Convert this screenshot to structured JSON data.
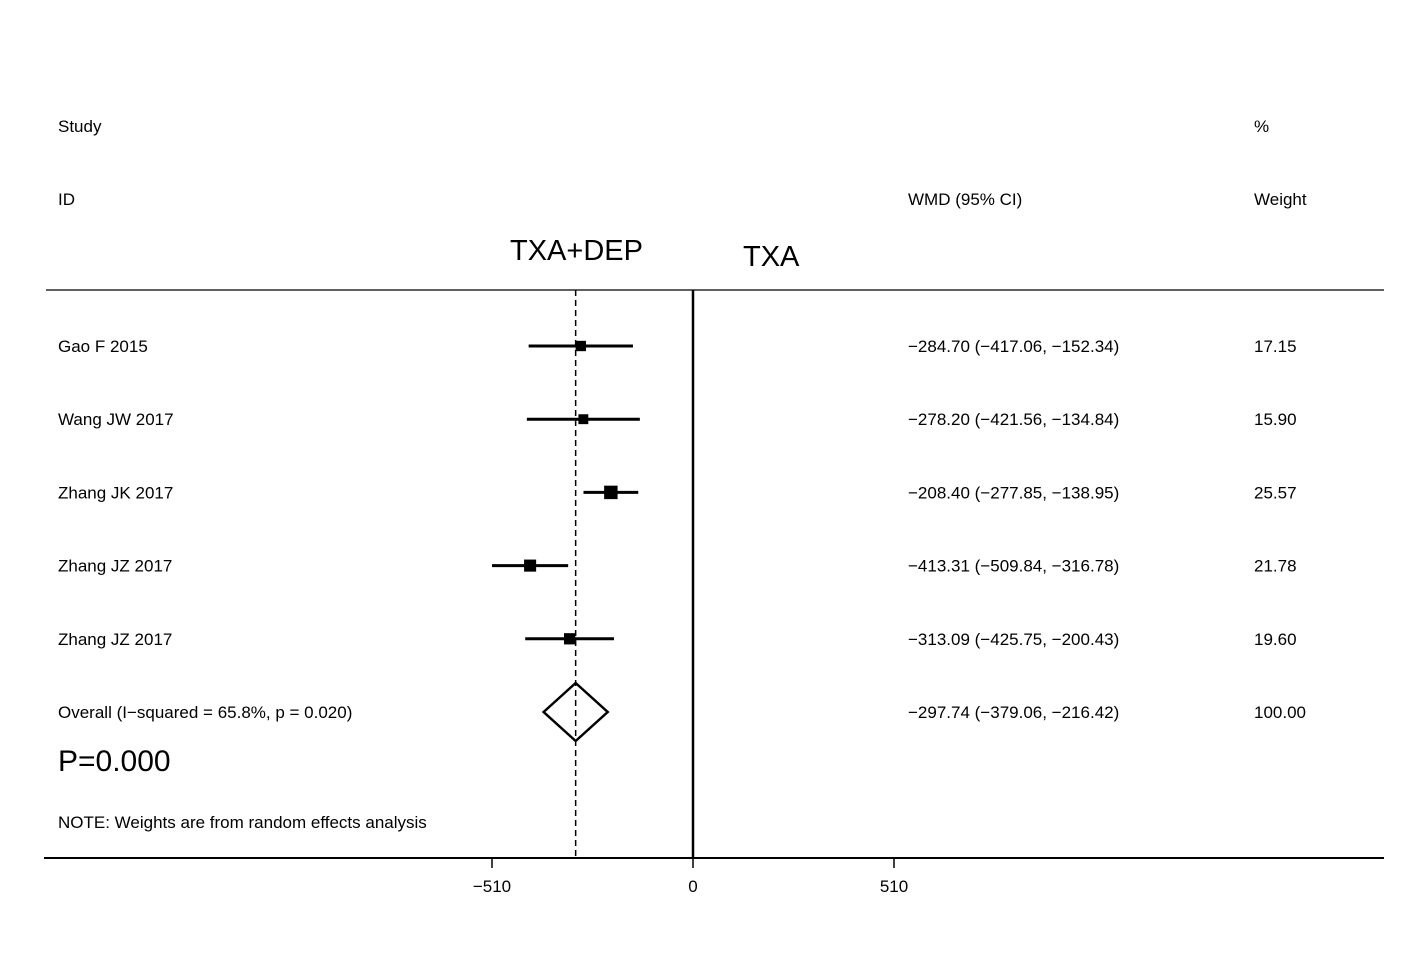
{
  "chart_data": {
    "type": "forest",
    "headers": {
      "study": "Study",
      "id": "ID",
      "effect": "WMD (95% CI)",
      "weight_pct": "%",
      "weight": "Weight"
    },
    "favours_left": "TXA+DEP",
    "favours_right": "TXA",
    "studies": [
      {
        "label": "Gao F 2015",
        "est": -284.7,
        "lo": -417.06,
        "hi": -152.34,
        "ci_text": "−284.70 (−417.06, −152.34)",
        "weight": 17.15,
        "weight_text": "17.15"
      },
      {
        "label": "Wang JW 2017",
        "est": -278.2,
        "lo": -421.56,
        "hi": -134.84,
        "ci_text": "−278.20 (−421.56, −134.84)",
        "weight": 15.9,
        "weight_text": "15.90"
      },
      {
        "label": "Zhang JK 2017",
        "est": -208.4,
        "lo": -277.85,
        "hi": -138.95,
        "ci_text": "−208.40 (−277.85, −138.95)",
        "weight": 25.57,
        "weight_text": "25.57"
      },
      {
        "label": "Zhang JZ 2017",
        "est": -413.31,
        "lo": -509.84,
        "hi": -316.78,
        "ci_text": "−413.31 (−509.84, −316.78)",
        "weight": 21.78,
        "weight_text": "21.78"
      },
      {
        "label": "Zhang JZ 2017",
        "est": -313.09,
        "lo": -425.75,
        "hi": -200.43,
        "ci_text": "−313.09 (−425.75, −200.43)",
        "weight": 19.6,
        "weight_text": "19.60"
      }
    ],
    "overall": {
      "label": "Overall  (I−squared = 65.8%, p = 0.020)",
      "est": -297.74,
      "lo": -379.06,
      "hi": -216.42,
      "ci_text": "−297.74 (−379.06, −216.42)",
      "weight_text": "100.00"
    },
    "p_value_text": "P=0.000",
    "note": "NOTE: Weights are from random effects analysis",
    "x_ticks": [
      {
        "value": -510,
        "label": "−510"
      },
      {
        "value": 0,
        "label": "0"
      },
      {
        "value": 510,
        "label": "510"
      }
    ],
    "null_value": 0
  }
}
